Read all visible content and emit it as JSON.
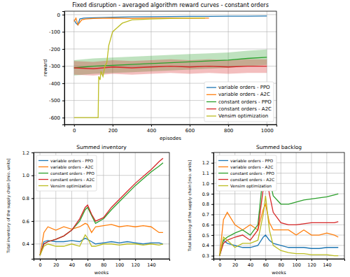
{
  "chart_data": [
    {
      "type": "line",
      "title": "Fixed disruption - averaged algorithm reward curves - constant orders",
      "xlabel": "episodes",
      "ylabel": "reward",
      "xlim": [
        -50,
        1050
      ],
      "xticks": [
        0,
        200,
        400,
        600,
        800,
        1000
      ],
      "ylim": [
        -640,
        20
      ],
      "yticks": [
        -600,
        -500,
        -400,
        -300,
        -200,
        -100,
        0
      ],
      "grid": true,
      "legend": "lower right",
      "series": [
        {
          "name": "variable orders - PPO",
          "color": "#1f77b4",
          "x": [
            0,
            10,
            20,
            30,
            50,
            100,
            200,
            300,
            400,
            500,
            600,
            700,
            800,
            900,
            1000
          ],
          "values": [
            -30,
            -50,
            -60,
            -25,
            -20,
            -18,
            -15,
            -13,
            -12,
            -11,
            -10,
            -10,
            -9,
            -9,
            -8
          ]
        },
        {
          "name": "variable orders - A2C",
          "color": "#ff7f0e",
          "x": [
            0,
            10,
            20,
            40,
            60,
            100,
            200,
            300,
            400,
            500,
            600,
            700
          ],
          "values": [
            -40,
            -20,
            -60,
            -30,
            -25,
            -22,
            -20,
            -22,
            -20,
            -20,
            -21,
            -20
          ]
        },
        {
          "name": "constant orders - PPO",
          "color": "#2ca02c",
          "x": [
            0,
            100,
            200,
            300,
            400,
            500,
            600,
            700,
            800,
            900,
            1000
          ],
          "values": [
            -310,
            -300,
            -295,
            -290,
            -285,
            -280,
            -275,
            -270,
            -265,
            -255,
            -248
          ],
          "errors": [
            45,
            45,
            45,
            45,
            45,
            45,
            45,
            45,
            45,
            45,
            45
          ]
        },
        {
          "name": "constant orders - A2C",
          "color": "#d62728",
          "x": [
            0,
            100,
            200,
            300,
            400,
            500,
            600,
            700,
            800,
            900,
            1000
          ],
          "values": [
            -310,
            -315,
            -305,
            -310,
            -305,
            -300,
            -305,
            -300,
            -305,
            -300,
            -300
          ],
          "errors": [
            40,
            40,
            40,
            40,
            40,
            40,
            40,
            40,
            40,
            40,
            40
          ]
        },
        {
          "name": "Vensim optimization",
          "color": "#bcbd22",
          "x": [
            0,
            125,
            128,
            135,
            140,
            150,
            160,
            170,
            180,
            200,
            220,
            250,
            300,
            400,
            500,
            600,
            680
          ],
          "values": [
            -600,
            -600,
            -360,
            -380,
            -330,
            -360,
            -300,
            -280,
            -180,
            -100,
            -80,
            -50,
            -30,
            -25,
            -22,
            -20,
            -20
          ]
        }
      ]
    },
    {
      "type": "line",
      "title": "Summed inventory",
      "xlabel": "weeks",
      "ylabel": "Total inventory of the supply chain [mio. units]",
      "xlim": [
        -8,
        163
      ],
      "xticks": [
        0,
        20,
        40,
        60,
        80,
        100,
        120,
        140
      ],
      "ylim": [
        0.27,
        1.2
      ],
      "yticks": [
        0.4,
        0.6,
        0.8,
        {
          "value": 1,
          "label": "1.0"
        },
        1.2
      ],
      "grid": true,
      "legend": "upper left",
      "series": [
        {
          "name": "variable orders - PPO",
          "color": "#1f77b4",
          "x": [
            0,
            5,
            10,
            20,
            30,
            40,
            50,
            57,
            60,
            65,
            70,
            80,
            90,
            100,
            110,
            120,
            130,
            140,
            150,
            155
          ],
          "values": [
            0.3,
            0.42,
            0.43,
            0.42,
            0.42,
            0.43,
            0.42,
            0.45,
            0.44,
            0.42,
            0.4,
            0.41,
            0.42,
            0.41,
            0.42,
            0.41,
            0.4,
            0.41,
            0.41,
            0.4
          ]
        },
        {
          "name": "variable orders - A2C",
          "color": "#ff7f0e",
          "x": [
            0,
            5,
            10,
            20,
            30,
            40,
            50,
            57,
            60,
            65,
            70,
            80,
            90,
            100,
            110,
            120,
            130,
            140,
            150,
            155
          ],
          "values": [
            0.3,
            0.5,
            0.55,
            0.52,
            0.55,
            0.53,
            0.55,
            0.58,
            0.57,
            0.5,
            0.55,
            0.56,
            0.57,
            0.55,
            0.56,
            0.55,
            0.56,
            0.55,
            0.5,
            0.5
          ]
        },
        {
          "name": "constant orders - PPO",
          "color": "#2ca02c",
          "x": [
            0,
            5,
            10,
            20,
            30,
            40,
            50,
            57,
            60,
            65,
            70,
            80,
            90,
            100,
            110,
            120,
            130,
            140,
            150,
            155
          ],
          "values": [
            0.3,
            0.4,
            0.42,
            0.44,
            0.47,
            0.52,
            0.6,
            0.7,
            0.72,
            0.65,
            0.58,
            0.62,
            0.7,
            0.77,
            0.84,
            0.91,
            0.97,
            1.03,
            1.08,
            1.11
          ]
        },
        {
          "name": "constant orders - A2C",
          "color": "#d62728",
          "x": [
            0,
            5,
            10,
            20,
            30,
            40,
            50,
            57,
            60,
            65,
            70,
            80,
            90,
            100,
            110,
            120,
            130,
            140,
            150,
            155
          ],
          "values": [
            0.3,
            0.4,
            0.42,
            0.44,
            0.47,
            0.52,
            0.62,
            0.72,
            0.74,
            0.66,
            0.6,
            0.63,
            0.72,
            0.79,
            0.86,
            0.93,
            0.99,
            1.05,
            1.12,
            1.15
          ]
        },
        {
          "name": "Vensim optimization",
          "color": "#bcbd22",
          "x": [
            0,
            5,
            10,
            20,
            30,
            40,
            50,
            57,
            60,
            65,
            70,
            80,
            90,
            100,
            110,
            120,
            130,
            140,
            150,
            155
          ],
          "values": [
            0.3,
            0.38,
            0.4,
            0.38,
            0.38,
            0.4,
            0.38,
            0.48,
            0.45,
            0.38,
            0.38,
            0.4,
            0.4,
            0.39,
            0.4,
            0.4,
            0.39,
            0.4,
            0.39,
            0.4
          ]
        }
      ]
    },
    {
      "type": "line",
      "title": "Summed backlog",
      "xlabel": "weeks",
      "ylabel": "Total backlog of the supply chain [mio. units]",
      "xlim": [
        -8,
        163
      ],
      "xticks": [
        0,
        20,
        40,
        60,
        80,
        100,
        120,
        140
      ],
      "ylim": [
        0.27,
        1.3
      ],
      "yticks": [
        0.3,
        0.4,
        0.5,
        0.6,
        0.7,
        0.8,
        0.9,
        {
          "value": 1,
          "label": "1.0"
        },
        1.1,
        1.2
      ],
      "grid": true,
      "legend": "upper left",
      "series": [
        {
          "name": "variable orders - PPO",
          "color": "#1f77b4",
          "x": [
            0,
            5,
            10,
            20,
            30,
            40,
            50,
            57,
            60,
            65,
            70,
            80,
            90,
            100,
            110,
            120,
            130,
            140,
            150,
            155
          ],
          "values": [
            0.3,
            0.45,
            0.42,
            0.4,
            0.38,
            0.38,
            0.4,
            0.48,
            0.5,
            0.45,
            0.42,
            0.4,
            0.38,
            0.38,
            0.38,
            0.37,
            0.37,
            0.38,
            0.38,
            0.38
          ]
        },
        {
          "name": "variable orders - A2C",
          "color": "#ff7f0e",
          "x": [
            0,
            5,
            10,
            20,
            30,
            40,
            50,
            57,
            60,
            65,
            70,
            80,
            90,
            100,
            110,
            120,
            130,
            140,
            150,
            155
          ],
          "values": [
            0.3,
            0.65,
            0.72,
            0.6,
            0.55,
            0.6,
            0.55,
            0.75,
            0.8,
            0.62,
            0.55,
            0.55,
            0.55,
            0.5,
            0.55,
            0.5,
            0.5,
            0.52,
            0.5,
            0.48
          ]
        },
        {
          "name": "constant orders - PPO",
          "color": "#2ca02c",
          "x": [
            0,
            5,
            10,
            20,
            30,
            40,
            50,
            57,
            60,
            65,
            70,
            80,
            90,
            100,
            110,
            120,
            130,
            140,
            150,
            155
          ],
          "values": [
            0.3,
            0.45,
            0.48,
            0.52,
            0.55,
            0.5,
            0.6,
            1.1,
            1.27,
            1.05,
            0.88,
            0.8,
            0.8,
            0.82,
            0.84,
            0.85,
            0.86,
            0.87,
            0.89,
            0.9
          ]
        },
        {
          "name": "constant orders - A2C",
          "color": "#d62728",
          "x": [
            0,
            5,
            10,
            20,
            30,
            40,
            50,
            57,
            60,
            65,
            70,
            80,
            90,
            100,
            110,
            120,
            130,
            140,
            150,
            155
          ],
          "values": [
            0.3,
            0.42,
            0.45,
            0.48,
            0.5,
            0.45,
            0.55,
            0.95,
            1.12,
            0.9,
            0.72,
            0.62,
            0.6,
            0.6,
            0.61,
            0.62,
            0.62,
            0.62,
            0.62,
            0.63
          ]
        },
        {
          "name": "Vensim optimization",
          "color": "#bcbd22",
          "x": [
            0,
            5,
            10,
            20,
            30,
            40,
            50,
            57,
            60,
            65,
            70,
            80,
            90,
            100,
            110,
            120,
            130,
            140,
            150,
            155
          ],
          "values": [
            0.3,
            0.48,
            0.45,
            0.38,
            0.42,
            0.42,
            0.45,
            0.7,
            0.88,
            0.55,
            0.4,
            0.35,
            0.33,
            0.32,
            0.32,
            0.31,
            0.31,
            0.31,
            0.3,
            0.3
          ]
        }
      ]
    }
  ]
}
